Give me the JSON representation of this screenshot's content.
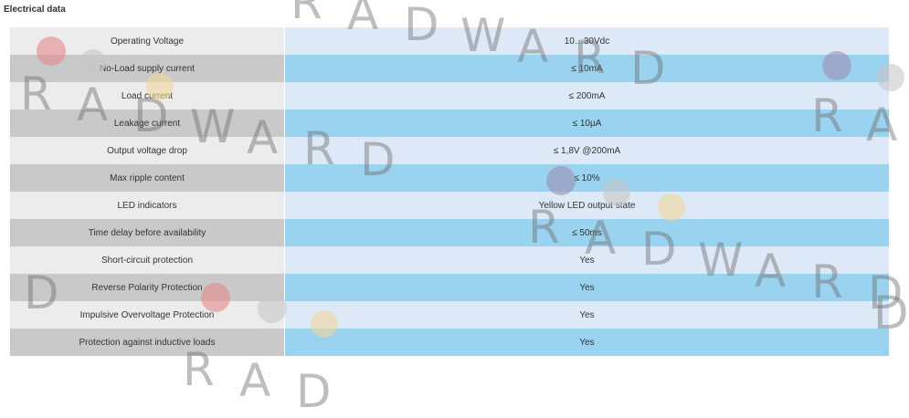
{
  "section": {
    "title": "Electrical data"
  },
  "rows": [
    {
      "label": "Operating Voltage",
      "value": "10…30Vdc"
    },
    {
      "label": "No-Load supply current",
      "value": "≤ 10mA"
    },
    {
      "label": "Load current",
      "value": "≤ 200mA"
    },
    {
      "label": "Leakage current",
      "value": "≤ 10µA"
    },
    {
      "label": "Output voltage drop",
      "value": "≤ 1,8V @200mA"
    },
    {
      "label": "Max ripple content",
      "value": "≤ 10%"
    },
    {
      "label": "LED indicators",
      "value": "Yellow LED output state"
    },
    {
      "label": "Time delay before availability",
      "value": "≤ 50ms"
    },
    {
      "label": "Short-circuit protection",
      "value": "Yes"
    },
    {
      "label": "Reverse Polarity Protection",
      "value": "Yes"
    },
    {
      "label": "Impulsive Overvoltage Protection",
      "value": "Yes"
    },
    {
      "label": "Protection against inductive loads",
      "value": "Yes"
    }
  ],
  "watermark": {
    "text": "RADWARD",
    "colors": {
      "red": "#e58a8a",
      "gray": "#c8c8c8",
      "yellow": "#f2d79b",
      "purple": "#9d8fb0"
    }
  }
}
